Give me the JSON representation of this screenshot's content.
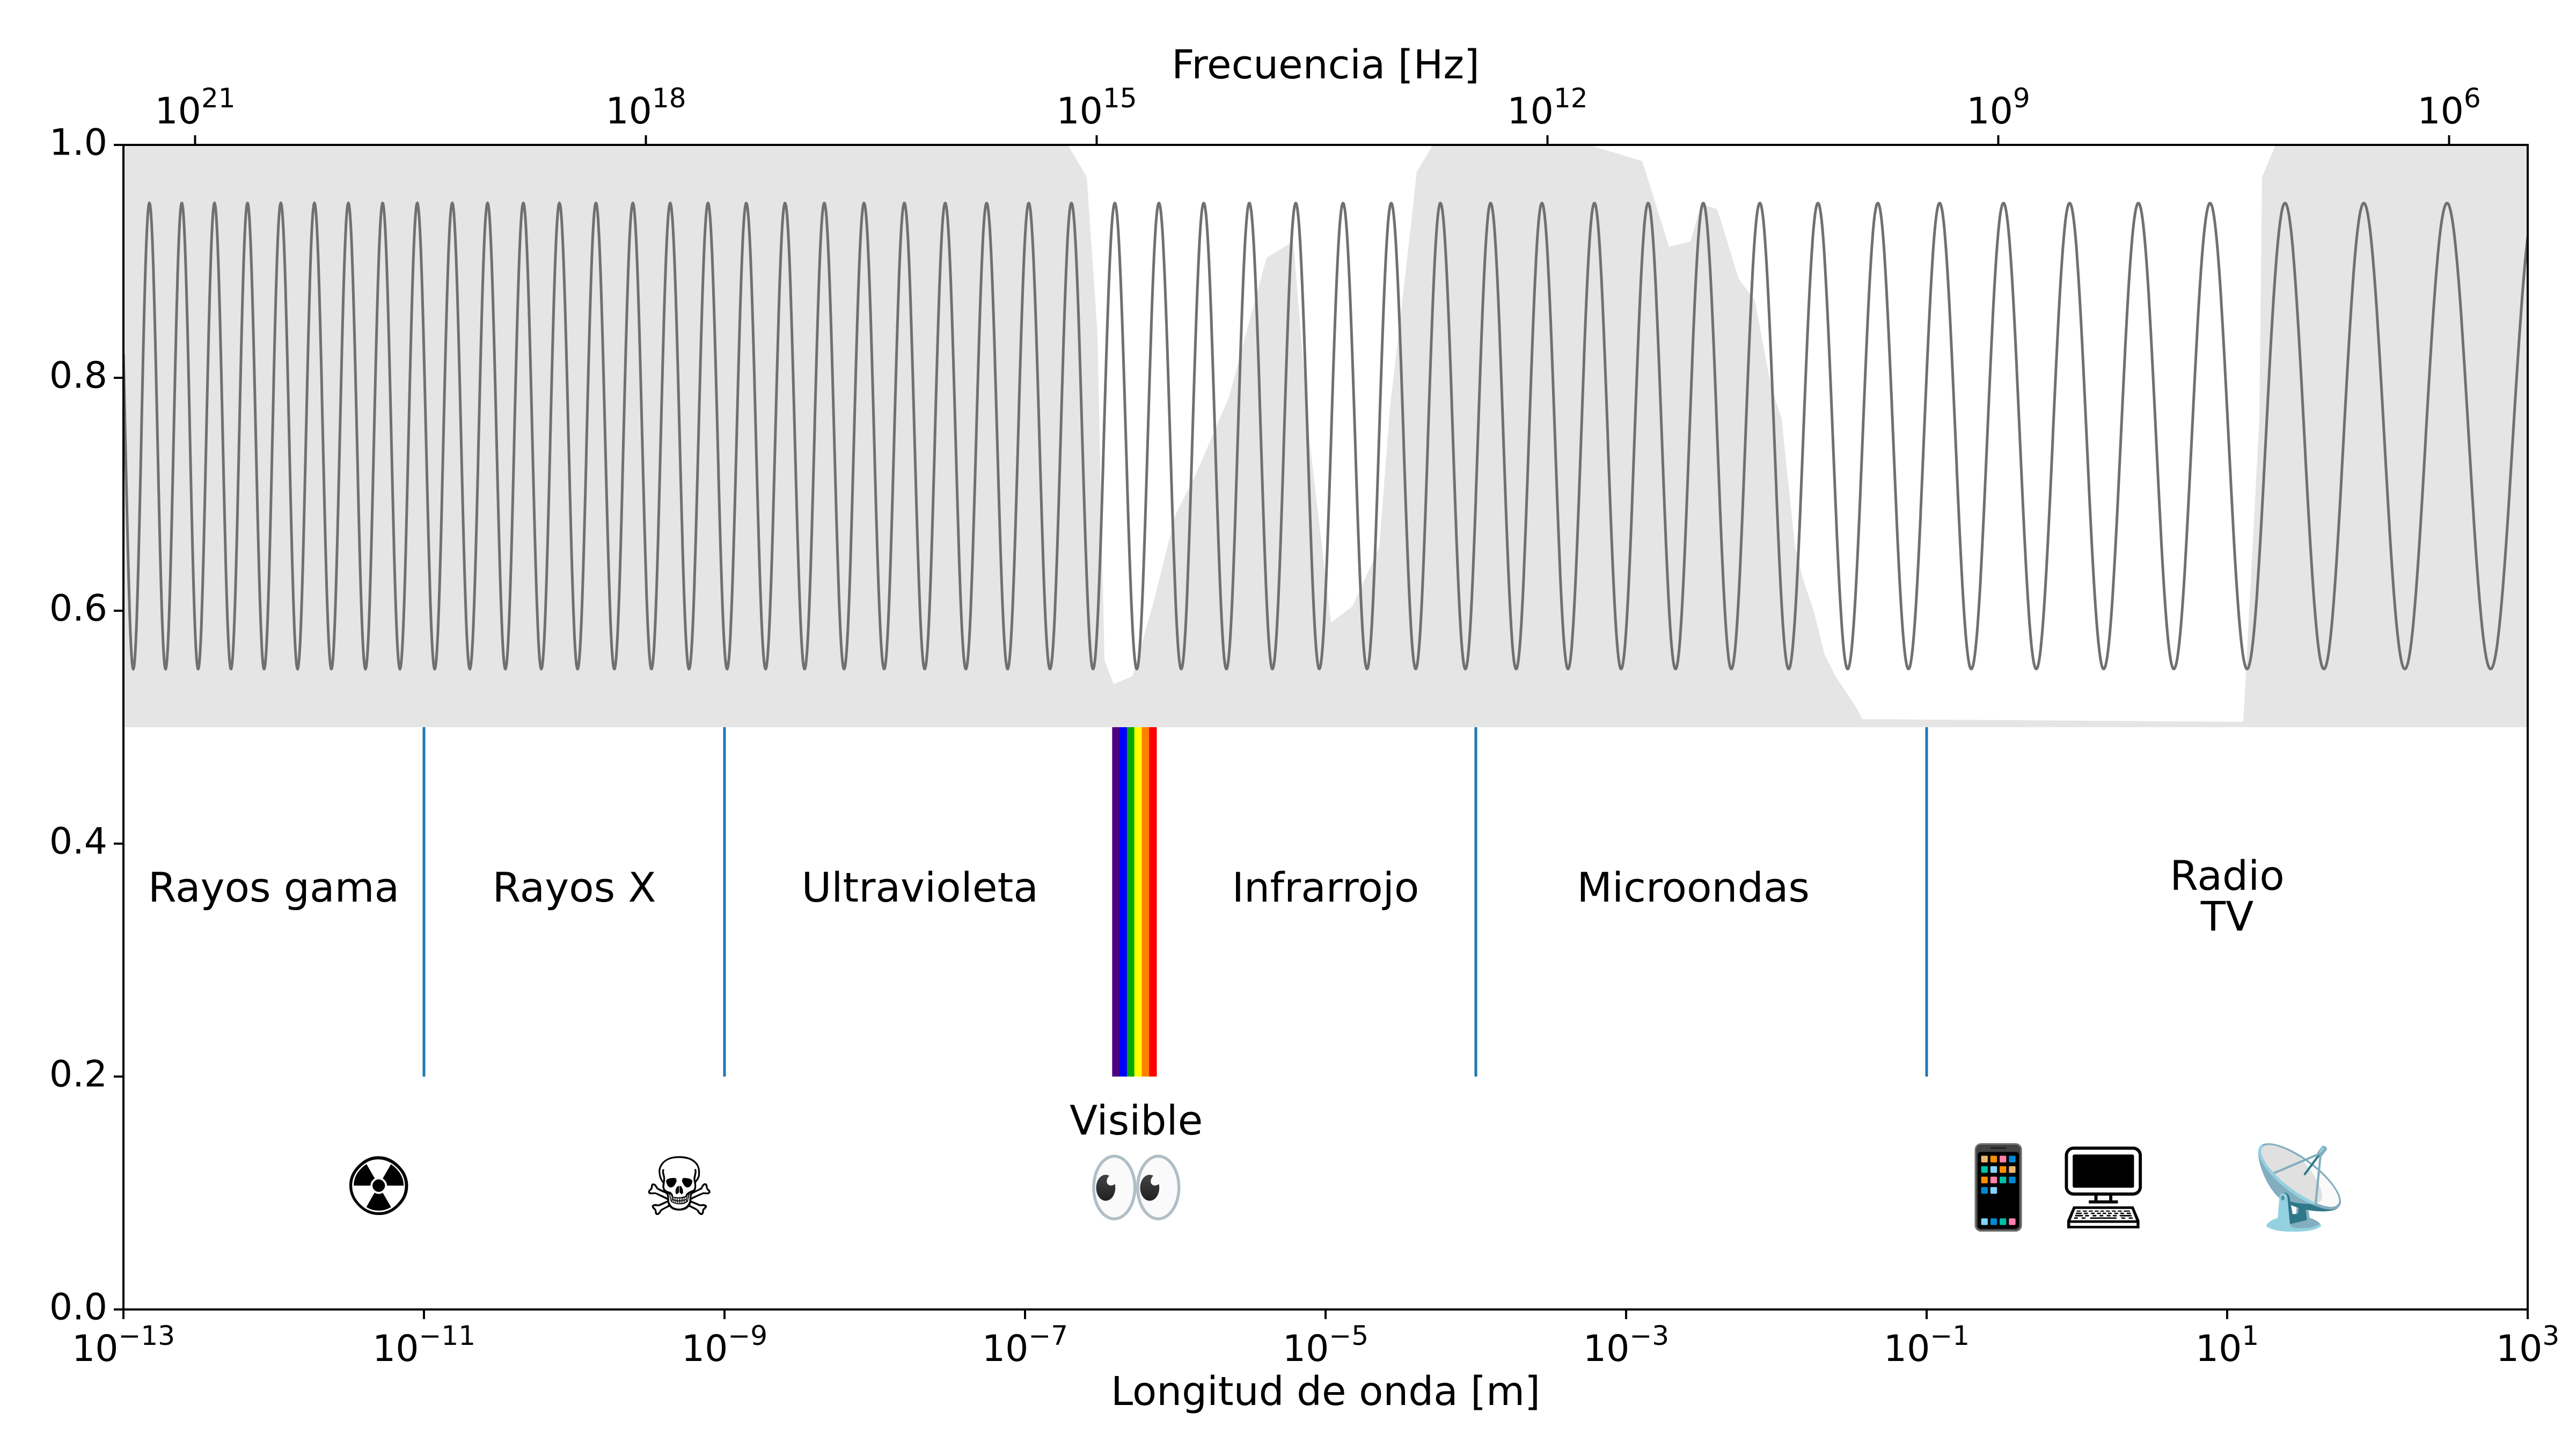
{
  "chart_data": {
    "type": "line",
    "xlabel": "Longitud de onda [m]",
    "x2label": "Frecuencia [Hz]",
    "xscale": "log",
    "xlim": [
      1e-13,
      1000
    ],
    "ylim": [
      0,
      1
    ],
    "x_ticks": [
      {
        "mantissa": "10",
        "exp": "−13",
        "value": 1e-13
      },
      {
        "mantissa": "10",
        "exp": "−11",
        "value": 1e-11
      },
      {
        "mantissa": "10",
        "exp": "−9",
        "value": 1e-09
      },
      {
        "mantissa": "10",
        "exp": "−7",
        "value": 1e-07
      },
      {
        "mantissa": "10",
        "exp": "−5",
        "value": 1e-05
      },
      {
        "mantissa": "10",
        "exp": "−3",
        "value": 0.001
      },
      {
        "mantissa": "10",
        "exp": "−1",
        "value": 0.1
      },
      {
        "mantissa": "10",
        "exp": "1",
        "value": 10
      },
      {
        "mantissa": "10",
        "exp": "3",
        "value": 1000
      }
    ],
    "x2_ticks": [
      {
        "mantissa": "10",
        "exp": "21",
        "value": 1e+21
      },
      {
        "mantissa": "10",
        "exp": "18",
        "value": 1e+18
      },
      {
        "mantissa": "10",
        "exp": "15",
        "value": 1000000000000000.0
      },
      {
        "mantissa": "10",
        "exp": "12",
        "value": 1000000000000.0
      },
      {
        "mantissa": "10",
        "exp": "9",
        "value": 1000000000.0
      },
      {
        "mantissa": "10",
        "exp": "6",
        "value": 1000000.0
      }
    ],
    "y_ticks": [
      "0.0",
      "0.2",
      "0.4",
      "0.6",
      "0.8",
      "1.0"
    ],
    "y_tick_values": [
      0,
      0.2,
      0.4,
      0.6,
      0.8,
      1.0
    ],
    "wave": {
      "color": "#707070",
      "center": 0.75,
      "amplitude": 0.2
    },
    "opacity_band": {
      "color": "#e5e5e5",
      "y_range": [
        0.5,
        1.0
      ]
    },
    "dividers": {
      "color": "#1f77b4",
      "y_range": [
        0.2,
        0.5
      ],
      "wavelengths": [
        1e-11,
        1e-09,
        0.0001,
        0.1
      ]
    },
    "regions": [
      {
        "label": "Rayos gama",
        "x": 1e-12,
        "y": 0.36
      },
      {
        "label": "Rayos X",
        "x": 1e-10,
        "y": 0.36
      },
      {
        "label": "Ultravioleta",
        "x": 2e-08,
        "y": 0.36
      },
      {
        "label": "Infrarrojo",
        "x": 1e-05,
        "y": 0.36
      },
      {
        "label": "Microondas",
        "x": 0.0028,
        "y": 0.36
      },
      {
        "label": "Radio",
        "x": 10,
        "y": 0.37
      },
      {
        "label": "TV",
        "x": 10,
        "y": 0.335
      }
    ],
    "visible": {
      "label": "Visible",
      "x": 5.5e-07,
      "y": 0.16,
      "range": [
        3.8e-07,
        7.5e-07
      ],
      "y_range": [
        0.2,
        0.5
      ],
      "colors": [
        "#4b0082",
        "#0000ff",
        "#00aa00",
        "#ffff00",
        "#ff8000",
        "#ff0000"
      ]
    },
    "icons": [
      {
        "name": "radiation-icon",
        "glyph": "☢",
        "x": 5e-12,
        "y": 0.1
      },
      {
        "name": "skull-crossbones-icon",
        "glyph": "☠",
        "x": 5e-10,
        "y": 0.1
      },
      {
        "name": "eyes-icon",
        "glyph": "👀",
        "x": 5.5e-07,
        "y": 0.1
      },
      {
        "name": "mobile-phone-icon",
        "glyph": "📱",
        "x": 0.3,
        "y": 0.1
      },
      {
        "name": "monitor-icon",
        "glyph": "🖥",
        "x": 1.5,
        "y": 0.1
      },
      {
        "name": "satellite-dish-icon",
        "glyph": "📡",
        "x": 30,
        "y": 0.1
      }
    ]
  }
}
